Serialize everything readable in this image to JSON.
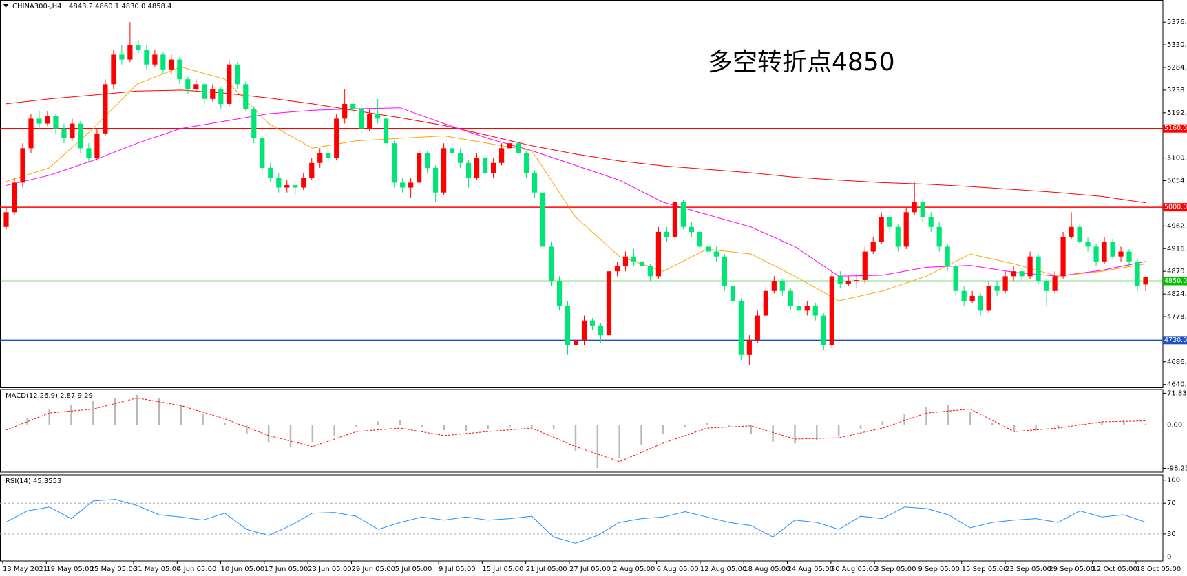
{
  "chart_data": [
    {
      "type": "candlestick",
      "title": "CHINA300-,H4",
      "info": "4843.2 4860.1 4830.0 4858.4",
      "up_color": "#ff0000",
      "down_color": "#00e676",
      "grid": false,
      "ylim": [
        4634,
        5421
      ],
      "yticks": [
        {
          "value": 5376,
          "label": "5376.0"
        },
        {
          "value": 5330,
          "label": "5330.0"
        },
        {
          "value": 5284,
          "label": "5284.0"
        },
        {
          "value": 5238,
          "label": "5238.0"
        },
        {
          "value": 5192,
          "label": "5192.0"
        },
        {
          "value": 5100,
          "label": "5100.0"
        },
        {
          "value": 5054,
          "label": "5054.0"
        },
        {
          "value": 4962,
          "label": "4962.0"
        },
        {
          "value": 4916,
          "label": "4916.0"
        },
        {
          "value": 4870,
          "label": "4870.0"
        },
        {
          "value": 4824,
          "label": "4824.0"
        },
        {
          "value": 4778,
          "label": "4778.0"
        },
        {
          "value": 4686,
          "label": "4686.0"
        },
        {
          "value": 4640,
          "label": "4640.0"
        }
      ],
      "levels": [
        {
          "value": 5160,
          "label": "5160.0",
          "color": "#ff0000"
        },
        {
          "value": 5000,
          "label": "5000.0",
          "color": "#ff0000"
        },
        {
          "value": 4850,
          "label": "4850.0",
          "color": "#00c000"
        },
        {
          "value": 4730,
          "label": "4730.0",
          "color": "#2050c0"
        }
      ],
      "annotation": {
        "text": "多空转折点4850",
        "color": "#ff0000"
      },
      "time_labels": [
        "13 May 2021",
        "19 May 05:00",
        "25 May 05:00",
        "31 May 05:00",
        "4 Jun 05:00",
        "10 Jun 05:00",
        "17 Jun 05:00",
        "23 Jun 05:00",
        "29 Jun 05:00",
        "5 Jul 05:00",
        "9 Jul 05:00",
        "15 Jul 05:00",
        "21 Jul 05:00",
        "27 Jul 05:00",
        "2 Aug 05:00",
        "6 Aug 05:00",
        "12 Aug 05:00",
        "18 Aug 05:00",
        "24 Aug 05:00",
        "30 Aug 05:00",
        "3 Sep 05:00",
        "9 Sep 05:00",
        "15 Sep 05:00",
        "23 Sep 05:00",
        "29 Sep 05:00",
        "12 Oct 05:00",
        "18 Oct 05:00"
      ],
      "lines": [
        {
          "color": "#ff0000",
          "values": [
            5210,
            5220,
            5228,
            5236,
            5238,
            5232,
            5222,
            5210,
            5196,
            5182,
            5166,
            5146,
            5125,
            5108,
            5094,
            5084,
            5077,
            5070,
            5061,
            5055,
            5050,
            5047,
            5042,
            5036,
            5030,
            5022,
            5009
          ]
        },
        {
          "color": "#ff00ff",
          "values": [
            5044,
            5065,
            5095,
            5130,
            5160,
            5175,
            5190,
            5197,
            5200,
            5202,
            5170,
            5140,
            5115,
            5085,
            5055,
            5010,
            4985,
            4960,
            4920,
            4860,
            4862,
            4878,
            4882,
            4868,
            4860,
            4872,
            4890
          ]
        },
        {
          "color": "#ffa500",
          "values": [
            5052,
            5080,
            5160,
            5250,
            5285,
            5260,
            5170,
            5120,
            5135,
            5140,
            5145,
            5130,
            5115,
            4980,
            4900,
            4870,
            4915,
            4905,
            4860,
            4810,
            4830,
            4860,
            4905,
            4885,
            4860,
            4870,
            4885
          ]
        }
      ],
      "candles": [
        [
          4960,
          5000,
          4955,
          4990
        ],
        [
          4990,
          5060,
          4985,
          5050
        ],
        [
          5050,
          5130,
          5040,
          5120
        ],
        [
          5120,
          5190,
          5110,
          5180
        ],
        [
          5180,
          5195,
          5160,
          5170
        ],
        [
          5170,
          5195,
          5165,
          5185
        ],
        [
          5185,
          5190,
          5150,
          5160
        ],
        [
          5160,
          5170,
          5130,
          5140
        ],
        [
          5140,
          5180,
          5135,
          5170
        ],
        [
          5170,
          5175,
          5110,
          5120
        ],
        [
          5120,
          5130,
          5090,
          5100
        ],
        [
          5100,
          5160,
          5095,
          5150
        ],
        [
          5150,
          5260,
          5145,
          5250
        ],
        [
          5250,
          5320,
          5240,
          5310
        ],
        [
          5310,
          5330,
          5290,
          5300
        ],
        [
          5300,
          5376,
          5295,
          5330
        ],
        [
          5330,
          5340,
          5310,
          5320
        ],
        [
          5320,
          5330,
          5280,
          5290
        ],
        [
          5290,
          5320,
          5285,
          5310
        ],
        [
          5310,
          5315,
          5270,
          5280
        ],
        [
          5280,
          5310,
          5270,
          5300
        ],
        [
          5300,
          5305,
          5250,
          5260
        ],
        [
          5260,
          5265,
          5230,
          5240
        ],
        [
          5240,
          5260,
          5235,
          5250
        ],
        [
          5250,
          5255,
          5210,
          5220
        ],
        [
          5220,
          5250,
          5215,
          5240
        ],
        [
          5240,
          5245,
          5200,
          5210
        ],
        [
          5210,
          5300,
          5205,
          5290
        ],
        [
          5290,
          5295,
          5240,
          5250
        ],
        [
          5250,
          5255,
          5195,
          5200
        ],
        [
          5200,
          5205,
          5130,
          5140
        ],
        [
          5140,
          5145,
          5070,
          5080
        ],
        [
          5080,
          5090,
          5050,
          5060
        ],
        [
          5060,
          5070,
          5030,
          5040
        ],
        [
          5040,
          5055,
          5030,
          5045
        ],
        [
          5045,
          5050,
          5025,
          5040
        ],
        [
          5040,
          5070,
          5035,
          5060
        ],
        [
          5060,
          5100,
          5055,
          5090
        ],
        [
          5090,
          5120,
          5080,
          5110
        ],
        [
          5110,
          5115,
          5090,
          5100
        ],
        [
          5100,
          5190,
          5095,
          5180
        ],
        [
          5180,
          5240,
          5170,
          5210
        ],
        [
          5210,
          5220,
          5190,
          5200
        ],
        [
          5200,
          5210,
          5150,
          5160
        ],
        [
          5160,
          5200,
          5155,
          5190
        ],
        [
          5190,
          5220,
          5170,
          5180
        ],
        [
          5180,
          5185,
          5120,
          5130
        ],
        [
          5130,
          5135,
          5040,
          5050
        ],
        [
          5050,
          5060,
          5030,
          5040
        ],
        [
          5040,
          5060,
          5020,
          5050
        ],
        [
          5050,
          5120,
          5045,
          5110
        ],
        [
          5110,
          5115,
          5070,
          5080
        ],
        [
          5080,
          5085,
          5010,
          5030
        ],
        [
          5030,
          5130,
          5025,
          5120
        ],
        [
          5120,
          5140,
          5100,
          5110
        ],
        [
          5110,
          5120,
          5080,
          5090
        ],
        [
          5090,
          5095,
          5040,
          5060
        ],
        [
          5060,
          5110,
          5055,
          5100
        ],
        [
          5100,
          5105,
          5050,
          5070
        ],
        [
          5070,
          5100,
          5060,
          5090
        ],
        [
          5090,
          5130,
          5085,
          5120
        ],
        [
          5120,
          5140,
          5110,
          5130
        ],
        [
          5130,
          5135,
          5100,
          5110
        ],
        [
          5110,
          5115,
          5060,
          5070
        ],
        [
          5070,
          5075,
          5020,
          5030
        ],
        [
          5030,
          5035,
          4910,
          4920
        ],
        [
          4920,
          4930,
          4840,
          4850
        ],
        [
          4850,
          4860,
          4790,
          4800
        ],
        [
          4800,
          4810,
          4700,
          4720
        ],
        [
          4720,
          4740,
          4665,
          4730
        ],
        [
          4730,
          4780,
          4720,
          4770
        ],
        [
          4770,
          4775,
          4750,
          4760
        ],
        [
          4760,
          4765,
          4725,
          4740
        ],
        [
          4740,
          4880,
          4735,
          4870
        ],
        [
          4870,
          4890,
          4860,
          4880
        ],
        [
          4880,
          4910,
          4870,
          4900
        ],
        [
          4900,
          4915,
          4880,
          4890
        ],
        [
          4890,
          4900,
          4870,
          4880
        ],
        [
          4880,
          4885,
          4850,
          4860
        ],
        [
          4860,
          4960,
          4855,
          4950
        ],
        [
          4950,
          4960,
          4930,
          4940
        ],
        [
          4940,
          5020,
          4935,
          5010
        ],
        [
          5010,
          5015,
          4955,
          4960
        ],
        [
          4960,
          4970,
          4940,
          4950
        ],
        [
          4950,
          4955,
          4910,
          4920
        ],
        [
          4920,
          4930,
          4900,
          4910
        ],
        [
          4910,
          4920,
          4890,
          4900
        ],
        [
          4900,
          4905,
          4830,
          4840
        ],
        [
          4840,
          4845,
          4800,
          4810
        ],
        [
          4810,
          4815,
          4690,
          4700
        ],
        [
          4700,
          4740,
          4680,
          4730
        ],
        [
          4730,
          4790,
          4725,
          4780
        ],
        [
          4780,
          4840,
          4775,
          4830
        ],
        [
          4830,
          4860,
          4825,
          4850
        ],
        [
          4850,
          4855,
          4820,
          4830
        ],
        [
          4830,
          4835,
          4790,
          4800
        ],
        [
          4800,
          4810,
          4780,
          4790
        ],
        [
          4790,
          4810,
          4780,
          4800
        ],
        [
          4800,
          4805,
          4770,
          4780
        ],
        [
          4780,
          4785,
          4710,
          4720
        ],
        [
          4720,
          4870,
          4715,
          4860
        ],
        [
          4860,
          4870,
          4835,
          4845
        ],
        [
          4845,
          4860,
          4840,
          4850
        ],
        [
          4850,
          4865,
          4835,
          4852
        ],
        [
          4852,
          4920,
          4845,
          4910
        ],
        [
          4910,
          4940,
          4905,
          4930
        ],
        [
          4930,
          4990,
          4925,
          4980
        ],
        [
          4980,
          4985,
          4950,
          4960
        ],
        [
          4960,
          4965,
          4910,
          4920
        ],
        [
          4920,
          5000,
          4915,
          4990
        ],
        [
          4990,
          5050,
          4985,
          5010
        ],
        [
          5010,
          5020,
          4970,
          4980
        ],
        [
          4980,
          4990,
          4950,
          4960
        ],
        [
          4960,
          4970,
          4910,
          4920
        ],
        [
          4920,
          4925,
          4870,
          4880
        ],
        [
          4880,
          4885,
          4820,
          4830
        ],
        [
          4830,
          4840,
          4800,
          4810
        ],
        [
          4810,
          4830,
          4805,
          4820
        ],
        [
          4820,
          4825,
          4780,
          4790
        ],
        [
          4790,
          4850,
          4785,
          4840
        ],
        [
          4840,
          4850,
          4820,
          4830
        ],
        [
          4830,
          4870,
          4825,
          4860
        ],
        [
          4860,
          4880,
          4850,
          4870
        ],
        [
          4870,
          4875,
          4850,
          4860
        ],
        [
          4860,
          4910,
          4855,
          4900
        ],
        [
          4900,
          4905,
          4845,
          4850
        ],
        [
          4850,
          4855,
          4800,
          4830
        ],
        [
          4830,
          4870,
          4825,
          4860
        ],
        [
          4860,
          4950,
          4855,
          4940
        ],
        [
          4940,
          4990,
          4935,
          4960
        ],
        [
          4960,
          4965,
          4925,
          4930
        ],
        [
          4930,
          4940,
          4910,
          4920
        ],
        [
          4920,
          4925,
          4880,
          4890
        ],
        [
          4890,
          4940,
          4885,
          4930
        ],
        [
          4930,
          4935,
          4895,
          4900
        ],
        [
          4900,
          4920,
          4890,
          4910
        ],
        [
          4910,
          4915,
          4880,
          4890
        ],
        [
          4890,
          4895,
          4830,
          4840
        ],
        [
          4843.2,
          4860.1,
          4830,
          4858.4
        ]
      ]
    },
    {
      "type": "macd",
      "title": "MACD(12,26,9) 2.87 9.29",
      "ylim": [
        -106.8,
        80.3
      ],
      "yticks": [
        71.83,
        {
          "value": 0,
          "label": "0.00"
        },
        -98.25
      ],
      "hist_color": "#b8b8b8",
      "signal_color": "#ff0000",
      "histogram": [
        0,
        15,
        35,
        45,
        55,
        60,
        68,
        60,
        45,
        25,
        5,
        -20,
        -40,
        -50,
        -40,
        -25,
        -5,
        8,
        10,
        -5,
        -12,
        -15,
        -10,
        -6,
        -4,
        -10,
        -60,
        -98,
        -75,
        -45,
        -20,
        -5,
        5,
        -5,
        -20,
        -38,
        -42,
        -35,
        -25,
        -10,
        8,
        25,
        40,
        45,
        30,
        5,
        -15,
        -12,
        -6,
        2,
        8,
        10,
        2.87
      ],
      "signal": [
        -12,
        27,
        36,
        61,
        44,
        14,
        -24,
        -49,
        -15,
        -7,
        -24,
        -15,
        -7,
        -49,
        -83,
        -41,
        -7,
        -2,
        -32,
        -29,
        -7,
        27,
        36,
        -15,
        -7,
        7,
        9.29
      ]
    },
    {
      "type": "line",
      "title": "RSI(14) 45.3553",
      "ylim": [
        -5,
        106.9
      ],
      "yticks": [
        100,
        70,
        30,
        0
      ],
      "levels": [
        70,
        30
      ],
      "color": "#1e90ff",
      "values": [
        45,
        60,
        65,
        50,
        73,
        75,
        67,
        55,
        52,
        48,
        57,
        36,
        28,
        41,
        57,
        58,
        53,
        36,
        45,
        52,
        48,
        52,
        48,
        50,
        53,
        26,
        18,
        28,
        45,
        50,
        52,
        59,
        52,
        45,
        41,
        26,
        48,
        45,
        36,
        53,
        50,
        65,
        63,
        55,
        38,
        45,
        48,
        50,
        45,
        60,
        52,
        55,
        45.3553
      ]
    }
  ]
}
